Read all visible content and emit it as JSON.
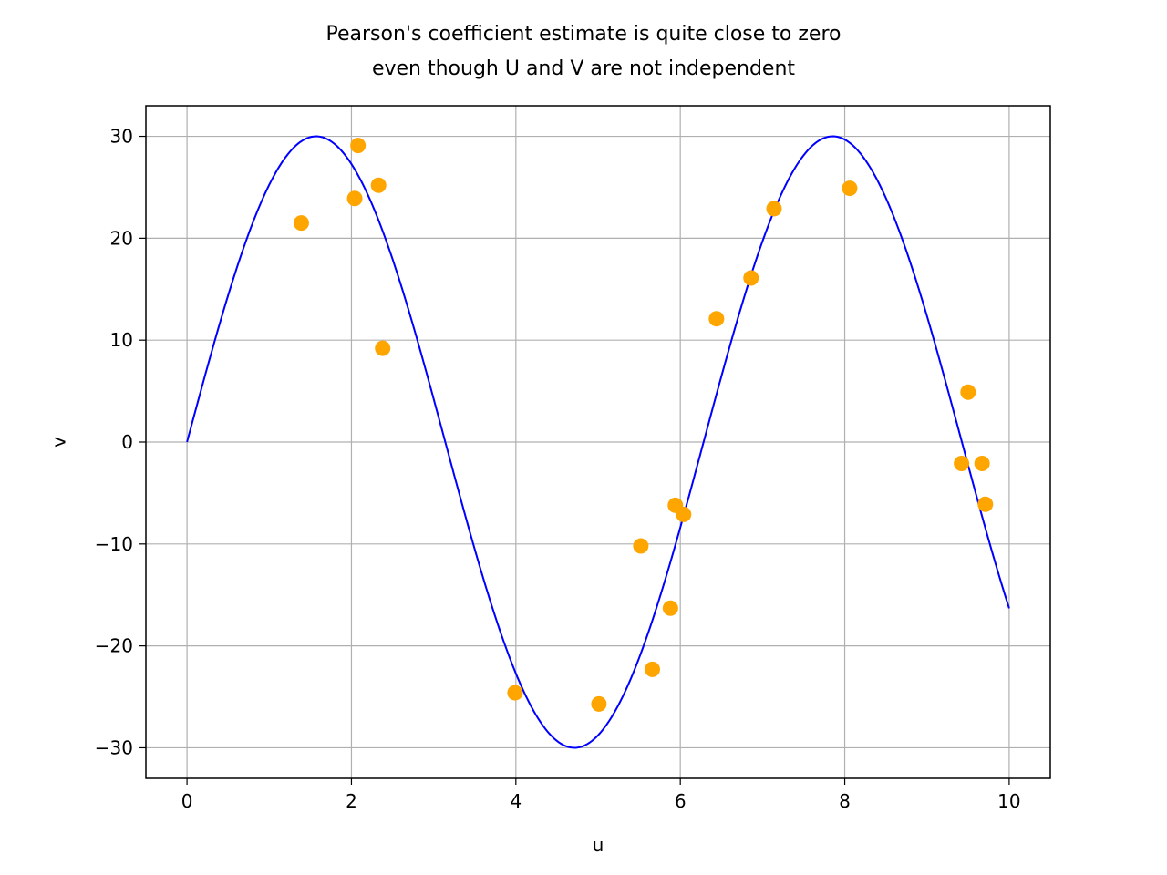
{
  "chart_data": {
    "type": "scatter",
    "title": [
      "Pearson's coefficient estimate is quite close to zero",
      "even though U and V are not independent"
    ],
    "xlabel": "u",
    "ylabel": "v",
    "xlim": [
      -0.5,
      10.5
    ],
    "ylim": [
      -33,
      33
    ],
    "xticks": [
      0,
      2,
      4,
      6,
      8,
      10
    ],
    "xtick_labels": [
      "0",
      "2",
      "4",
      "6",
      "8",
      "10"
    ],
    "yticks": [
      -30,
      -20,
      -10,
      0,
      10,
      20,
      30
    ],
    "ytick_labels": [
      "−30",
      "−20",
      "−10",
      "0",
      "10",
      "20",
      "30"
    ],
    "grid": true,
    "series": [
      {
        "kind": "line",
        "function": "30*sin(u)",
        "domain": [
          0,
          10
        ],
        "color": "#0000ff"
      },
      {
        "kind": "scatter",
        "color": "#ffa500",
        "points": [
          [
            1.39,
            21.5
          ],
          [
            2.04,
            23.9
          ],
          [
            2.08,
            29.1
          ],
          [
            2.33,
            25.2
          ],
          [
            2.38,
            9.2
          ],
          [
            3.99,
            -24.6
          ],
          [
            5.01,
            -25.7
          ],
          [
            5.52,
            -10.2
          ],
          [
            5.66,
            -22.3
          ],
          [
            5.88,
            -16.3
          ],
          [
            5.94,
            -6.2
          ],
          [
            6.04,
            -7.1
          ],
          [
            6.44,
            12.1
          ],
          [
            6.86,
            16.1
          ],
          [
            7.14,
            22.9
          ],
          [
            8.06,
            24.9
          ],
          [
            9.42,
            -2.1
          ],
          [
            9.5,
            4.9
          ],
          [
            9.67,
            -2.1
          ],
          [
            9.71,
            -6.1
          ]
        ]
      }
    ]
  }
}
